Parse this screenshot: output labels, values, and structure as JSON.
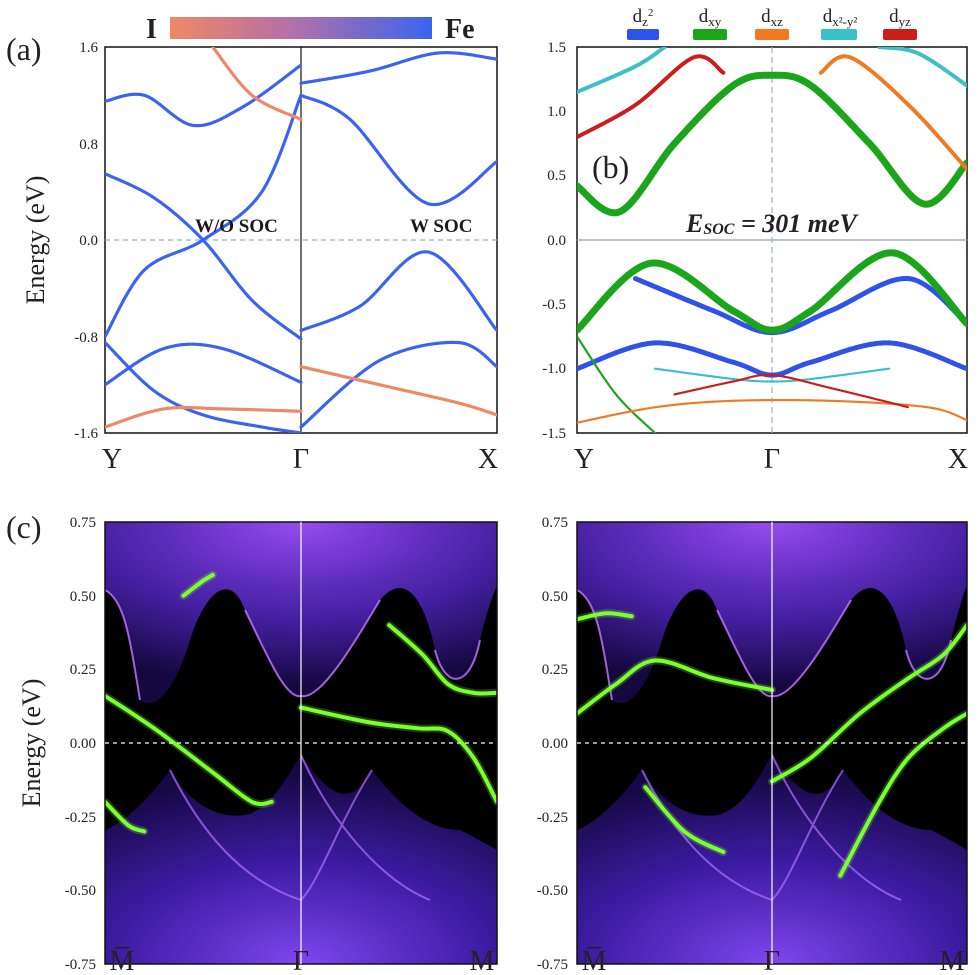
{
  "colors": {
    "iodine": "#ee8866",
    "fe": "#3a64f0",
    "dz2": "#2f52e8",
    "dxy": "#1aa51a",
    "dxz": "#f07a22",
    "dx2y2": "#3cc0c8",
    "dyz": "#cc1c1c",
    "surface_glow": "#9c3cff",
    "edge_state": "#7cff2e",
    "grid_dash": "#9bb0c8"
  },
  "chart_data": [
    {
      "id": "a",
      "type": "line",
      "panel_label": "(a)",
      "ylabel": "Energy (eV)",
      "ylim": [
        -1.6,
        1.6
      ],
      "yticks": [
        "1.6",
        "0.8",
        "0.0",
        "-0.8",
        "-1.6"
      ],
      "xticks": [
        "Y",
        "Γ",
        "X"
      ],
      "colorbar": {
        "left": "I",
        "right": "Fe"
      },
      "annotations": [
        "W/O SOC",
        "W SOC"
      ],
      "series": [
        {
          "name": "woSOC-1",
          "color": "fe",
          "x": [
            0,
            0.2,
            0.5,
            0.8,
            1.0
          ],
          "y": [
            -0.8,
            -0.25,
            0.0,
            0.4,
            1.2
          ]
        },
        {
          "name": "woSOC-2",
          "color": "fe",
          "x": [
            0,
            0.25,
            0.5,
            0.75,
            1.0
          ],
          "y": [
            0.55,
            0.35,
            0.0,
            -0.5,
            -0.82
          ]
        },
        {
          "name": "woSOC-3",
          "color": "fe",
          "x": [
            0,
            0.2,
            0.45,
            0.7,
            1.0
          ],
          "y": [
            1.15,
            1.2,
            0.95,
            1.1,
            1.45
          ]
        },
        {
          "name": "woSOC-4",
          "color": "fe",
          "x": [
            0,
            0.3,
            0.6,
            1.0
          ],
          "y": [
            -1.2,
            -0.9,
            -0.9,
            -1.18
          ]
        },
        {
          "name": "woSOC-5",
          "color": "fe",
          "x": [
            0,
            0.25,
            0.5,
            0.8,
            1.0
          ],
          "y": [
            -0.85,
            -1.25,
            -1.45,
            -1.55,
            -1.6
          ]
        },
        {
          "name": "woSOC-6",
          "color": "iodine",
          "x": [
            0,
            0.3,
            0.6,
            1.0
          ],
          "y": [
            -1.55,
            -1.4,
            -1.4,
            -1.42
          ]
        },
        {
          "name": "woSOC-7",
          "color": "iodine",
          "x": [
            0.55,
            0.75,
            1.0
          ],
          "y": [
            1.6,
            1.2,
            1.0
          ]
        },
        {
          "name": "wSOC-1",
          "color": "fe",
          "x": [
            0,
            0.3,
            0.65,
            1.0
          ],
          "y": [
            -0.75,
            -0.55,
            -0.1,
            -0.75
          ]
        },
        {
          "name": "wSOC-2",
          "color": "fe",
          "x": [
            0,
            0.25,
            0.65,
            1.0
          ],
          "y": [
            1.2,
            1.0,
            0.3,
            0.65
          ]
        },
        {
          "name": "wSOC-3",
          "color": "fe",
          "x": [
            0,
            0.4,
            0.8,
            1.0
          ],
          "y": [
            -1.55,
            -1.0,
            -0.85,
            -1.05
          ]
        },
        {
          "name": "wSOC-4",
          "color": "iodine",
          "x": [
            0,
            0.4,
            0.8,
            1.0
          ],
          "y": [
            -1.05,
            -1.2,
            -1.35,
            -1.45
          ]
        },
        {
          "name": "wSOC-5",
          "color": "fe",
          "x": [
            0,
            0.35,
            0.7,
            1.0
          ],
          "y": [
            1.3,
            1.4,
            1.55,
            1.5
          ]
        }
      ]
    },
    {
      "id": "b",
      "type": "line",
      "panel_label": "(b)",
      "ylim": [
        -1.5,
        1.5
      ],
      "yticks": [
        "1.5",
        "1.0",
        "0.5",
        "0.0",
        "-0.5",
        "-1.0",
        "-1.5"
      ],
      "xticks": [
        "Y",
        "Γ",
        "X"
      ],
      "annotation": {
        "prefix": "E",
        "sub": "SOC",
        "value": " = 301 meV"
      },
      "legend": [
        "d_z²",
        "d_xy",
        "d_xz",
        "d_x²-y²",
        "d_yz"
      ],
      "legend_text": [
        {
          "base": "d",
          "sub": "z",
          "sup": "2"
        },
        {
          "base": "d",
          "sub": "xy"
        },
        {
          "base": "d",
          "sub": "xz"
        },
        {
          "base": "d",
          "sub": "x²-y²"
        },
        {
          "base": "d",
          "sub": "yz"
        }
      ],
      "series": [
        {
          "name": "dxy-upper",
          "color": "dxy",
          "x": [
            -1,
            -0.78,
            -0.5,
            -0.2,
            0,
            0.2,
            0.5,
            0.78,
            1
          ],
          "y": [
            0.42,
            0.22,
            0.75,
            1.2,
            1.28,
            1.2,
            0.75,
            0.28,
            0.6
          ]
        },
        {
          "name": "dyz-upper",
          "color": "dyz",
          "x": [
            -1,
            -0.7,
            -0.4,
            -0.25
          ],
          "y": [
            0.8,
            1.05,
            1.42,
            1.3
          ]
        },
        {
          "name": "dxz-upper",
          "color": "dxz",
          "x": [
            0.25,
            0.4,
            0.7,
            1
          ],
          "y": [
            1.3,
            1.42,
            1.05,
            0.55
          ]
        },
        {
          "name": "dx2y2-upper",
          "color": "dx2y2",
          "x": [
            -1,
            -0.7,
            -0.55
          ],
          "y": [
            1.15,
            1.35,
            1.5
          ]
        },
        {
          "name": "dx2y2-upper-r",
          "color": "dx2y2",
          "x": [
            0.55,
            0.75,
            1
          ],
          "y": [
            1.5,
            1.45,
            1.2
          ]
        },
        {
          "name": "dz2-valence",
          "color": "dz2",
          "x": [
            -0.7,
            -0.3,
            0,
            0.3,
            0.7,
            1
          ],
          "y": [
            -0.3,
            -0.55,
            -0.72,
            -0.55,
            -0.3,
            -0.65
          ]
        },
        {
          "name": "dxy-valence",
          "color": "dxy",
          "x": [
            -1,
            -0.62,
            -0.2,
            0,
            0.2,
            0.62,
            1
          ],
          "y": [
            -0.7,
            -0.18,
            -0.55,
            -0.7,
            -0.55,
            -0.1,
            -0.65
          ]
        },
        {
          "name": "dz2-lower",
          "color": "dz2",
          "x": [
            -1,
            -0.6,
            -0.2,
            0,
            0.2,
            0.6,
            1
          ],
          "y": [
            -1.0,
            -0.8,
            -0.95,
            -1.05,
            -0.95,
            -0.8,
            -1.0
          ]
        },
        {
          "name": "dx2y2-lower",
          "color": "dx2y2",
          "x": [
            -0.6,
            -0.2,
            0,
            0.2,
            0.6
          ],
          "y": [
            -1.0,
            -1.08,
            -1.1,
            -1.08,
            -1.0
          ]
        },
        {
          "name": "dxy-lower",
          "color": "dxy",
          "x": [
            -1,
            -0.8,
            -0.6
          ],
          "y": [
            -0.75,
            -1.2,
            -1.5
          ]
        },
        {
          "name": "dxz-lower",
          "color": "dxz",
          "x": [
            -1,
            -0.6,
            -0.2,
            0.3,
            0.8,
            1
          ],
          "y": [
            -1.42,
            -1.3,
            -1.25,
            -1.25,
            -1.3,
            -1.4
          ]
        },
        {
          "name": "dyz-lower",
          "color": "dyz",
          "x": [
            -0.5,
            -0.2,
            0,
            0.3,
            0.7
          ],
          "y": [
            -1.2,
            -1.1,
            -1.05,
            -1.15,
            -1.3
          ]
        }
      ]
    },
    {
      "id": "c-left",
      "type": "heatmap",
      "panel_label": "(c)",
      "ylabel": "Energy (eV)",
      "ylim": [
        -0.75,
        0.75
      ],
      "yticks": [
        "0.75",
        "0.50",
        "0.25",
        "0.00",
        "-0.25",
        "-0.50",
        "-0.75"
      ],
      "xticks": [
        "M̅",
        "Γ",
        "M"
      ],
      "edge_states": [
        {
          "x": [
            -1,
            -0.75,
            -0.45,
            -0.25,
            -0.15
          ],
          "y": [
            0.16,
            0.05,
            -0.1,
            -0.2,
            -0.2
          ]
        },
        {
          "x": [
            0,
            0.35,
            0.6,
            0.75,
            0.88,
            1
          ],
          "y": [
            0.12,
            0.07,
            0.05,
            0.04,
            -0.05,
            -0.2
          ]
        },
        {
          "x": [
            0.45,
            0.62,
            0.75,
            0.88,
            1
          ],
          "y": [
            0.4,
            0.3,
            0.2,
            0.17,
            0.17
          ]
        },
        {
          "x": [
            -1,
            -0.88,
            -0.8
          ],
          "y": [
            -0.2,
            -0.28,
            -0.3
          ]
        },
        {
          "x": [
            -0.6,
            -0.5,
            -0.45
          ],
          "y": [
            0.5,
            0.55,
            0.57
          ]
        }
      ]
    },
    {
      "id": "c-right",
      "type": "heatmap",
      "ylim": [
        -0.75,
        0.75
      ],
      "yticks": [
        "0.75",
        "0.50",
        "0.25",
        "0.00",
        "-0.25",
        "-0.50",
        "-0.75"
      ],
      "xticks": [
        "M̅",
        "Γ",
        "M"
      ],
      "edge_states": [
        {
          "x": [
            -1,
            -0.8,
            -0.6,
            -0.3,
            0
          ],
          "y": [
            0.1,
            0.2,
            0.28,
            0.22,
            0.18
          ]
        },
        {
          "x": [
            0,
            0.2,
            0.45,
            0.7,
            0.88,
            1
          ],
          "y": [
            -0.13,
            -0.05,
            0.1,
            0.22,
            0.3,
            0.4
          ]
        },
        {
          "x": [
            0.35,
            0.55,
            0.7,
            0.88,
            1
          ],
          "y": [
            -0.45,
            -0.2,
            -0.05,
            0.05,
            0.1
          ]
        },
        {
          "x": [
            -0.65,
            -0.45,
            -0.25
          ],
          "y": [
            -0.15,
            -0.3,
            -0.37
          ]
        },
        {
          "x": [
            -1,
            -0.85,
            -0.72
          ],
          "y": [
            0.42,
            0.44,
            0.43
          ]
        }
      ]
    }
  ]
}
